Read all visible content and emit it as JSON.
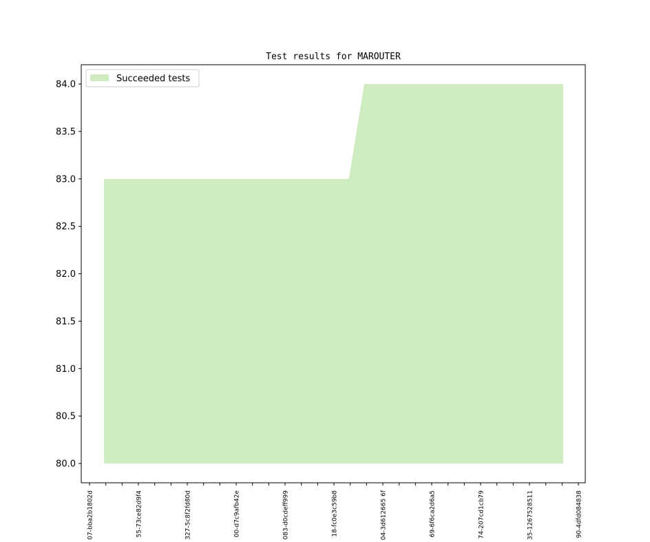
{
  "chart_data": {
    "type": "area",
    "title": "Test results for MAROUTER",
    "xlabel": "",
    "ylabel": "",
    "ylim": [
      80.0,
      84.0
    ],
    "yticks": [
      "80.0",
      "80.5",
      "81.0",
      "81.5",
      "82.0",
      "82.5",
      "83.0",
      "83.5",
      "84.0"
    ],
    "categories": [
      "07-bba2b1802d",
      "",
      "",
      "55-73ce82d9f4",
      "",
      "",
      "327-5c8f2fd80d",
      "",
      "",
      "00-d7c9afb42e",
      "",
      "",
      "083-d0cdeff999",
      "",
      "",
      "18-fc0e3c59b8",
      "",
      "",
      "04-3d612665 6f",
      "",
      "",
      "69-6f6ca2d6a5",
      "",
      "",
      "74-207cd1cb79",
      "",
      "",
      "35-1267528511",
      "",
      "",
      "90-4dfd084838"
    ],
    "series": [
      {
        "name": "Succeeded tests",
        "color": "#ceecbf",
        "values": [
          83,
          83,
          83,
          83,
          83,
          83,
          83,
          83,
          83,
          83,
          83,
          83,
          83,
          83,
          83,
          83,
          83,
          84,
          84,
          84,
          84,
          84,
          84,
          84,
          84,
          84,
          84,
          84,
          84,
          84,
          84
        ]
      }
    ],
    "fill_base": 80.0,
    "legend_position": "upper-left",
    "grid": false
  }
}
